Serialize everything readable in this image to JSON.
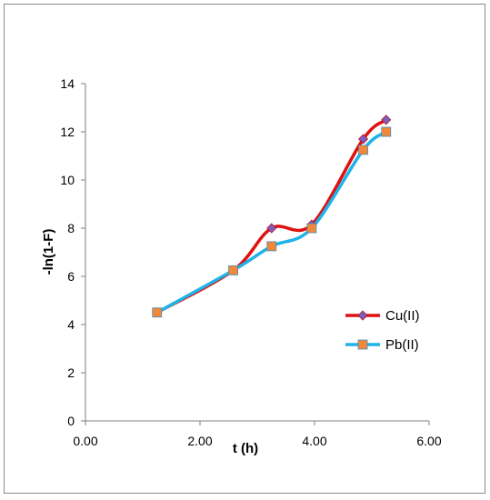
{
  "chart_data": {
    "type": "line",
    "title": "",
    "xlabel": "t (h)",
    "ylabel": "-ln(1-F)",
    "xlim": [
      0,
      6
    ],
    "ylim": [
      0,
      14
    ],
    "x_ticks": [
      "0.00",
      "2.00",
      "4.00",
      "6.00"
    ],
    "y_ticks": [
      "0",
      "2",
      "4",
      "6",
      "8",
      "10",
      "12",
      "14"
    ],
    "grid": false,
    "smooth": true,
    "legend_position": "right",
    "series": [
      {
        "name": "Cu(II)",
        "color": "#e01010",
        "marker": "diamond",
        "marker_color": "#7a5fc0",
        "x": [
          1.25,
          2.58,
          3.25,
          3.95,
          4.85,
          5.25
        ],
        "y": [
          4.5,
          6.25,
          8.0,
          8.15,
          11.7,
          12.5
        ]
      },
      {
        "name": "Pb(II)",
        "color": "#1fb3e8",
        "marker": "square",
        "marker_color": "#f0883a",
        "x": [
          1.25,
          2.58,
          3.25,
          3.95,
          4.85,
          5.25
        ],
        "y": [
          4.5,
          6.25,
          7.25,
          8.0,
          11.25,
          12.0
        ]
      }
    ]
  }
}
